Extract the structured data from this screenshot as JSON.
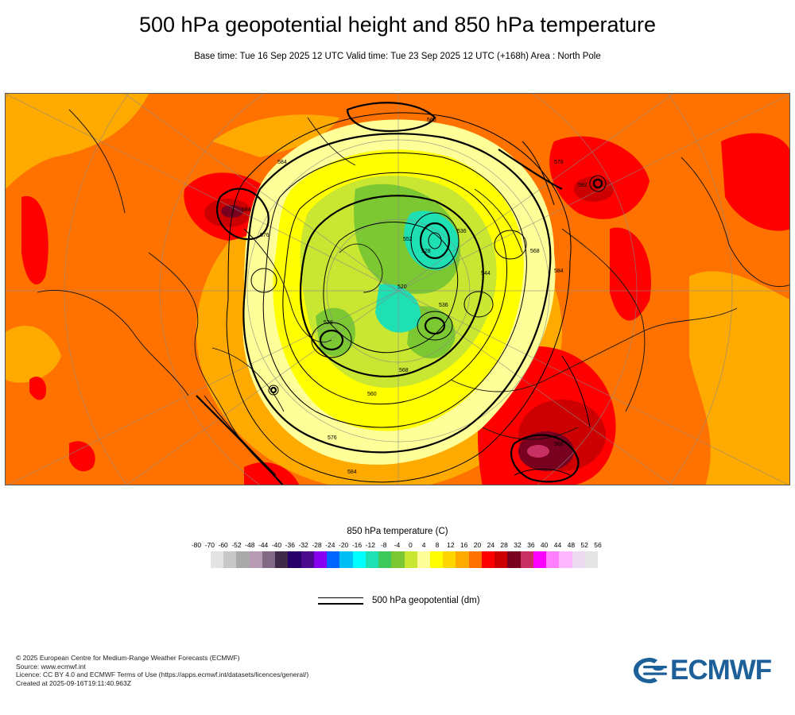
{
  "header": {
    "title": "500 hPa geopotential height and 850 hPa temperature",
    "subtitle": "Base time: Tue 16 Sep 2025 12 UTC Valid time: Tue 23 Sep 2025 12 UTC (+168h) Area : North Pole"
  },
  "legend": {
    "title": "850 hPa temperature (C)",
    "ticks": [
      "-80",
      "-70",
      "-60",
      "-52",
      "-48",
      "-44",
      "-40",
      "-36",
      "-32",
      "-28",
      "-24",
      "-20",
      "-16",
      "-12",
      "-8",
      "-4",
      "0",
      "4",
      "8",
      "12",
      "16",
      "20",
      "24",
      "28",
      "32",
      "36",
      "40",
      "44",
      "48",
      "52",
      "56"
    ],
    "colors": [
      "#e3e3e3",
      "#c7c7c7",
      "#aaaaaa",
      "#b79bb5",
      "#826a84",
      "#3f2a4a",
      "#260068",
      "#4b0a8c",
      "#8800f0",
      "#0064ff",
      "#00bff5",
      "#00ffff",
      "#1ee0b3",
      "#3cc85a",
      "#7cc832",
      "#c8e632",
      "#ffff99",
      "#ffff00",
      "#ffd700",
      "#ffaa00",
      "#ff7200",
      "#ff0000",
      "#cc0000",
      "#7a0020",
      "#c83064",
      "#ff00ff",
      "#ff7fff",
      "#ffb8ff",
      "#ecdbf0",
      "#e5e5e5"
    ],
    "contour_label": "500 hPa geopotential (dm)"
  },
  "map": {
    "contour_labels": [
      "584",
      "576",
      "584",
      "568",
      "552",
      "536",
      "528",
      "520",
      "528",
      "536",
      "544",
      "560",
      "568",
      "576",
      "584",
      "576",
      "592",
      "560",
      "584",
      "568"
    ]
  },
  "credits": {
    "line1": "© 2025 European Centre for Medium-Range Weather Forecasts (ECMWF)",
    "line2": "Source: www.ecmwf.int",
    "line3": "Licence: CC BY 4.0 and ECMWF Terms of Use (https://apps.ecmwf.int/datasets/licences/general/)",
    "line4": "Created at 2025-09-16T19:11:40.963Z"
  },
  "logo": {
    "text": "ECMWF",
    "color": "#1d5f99"
  }
}
